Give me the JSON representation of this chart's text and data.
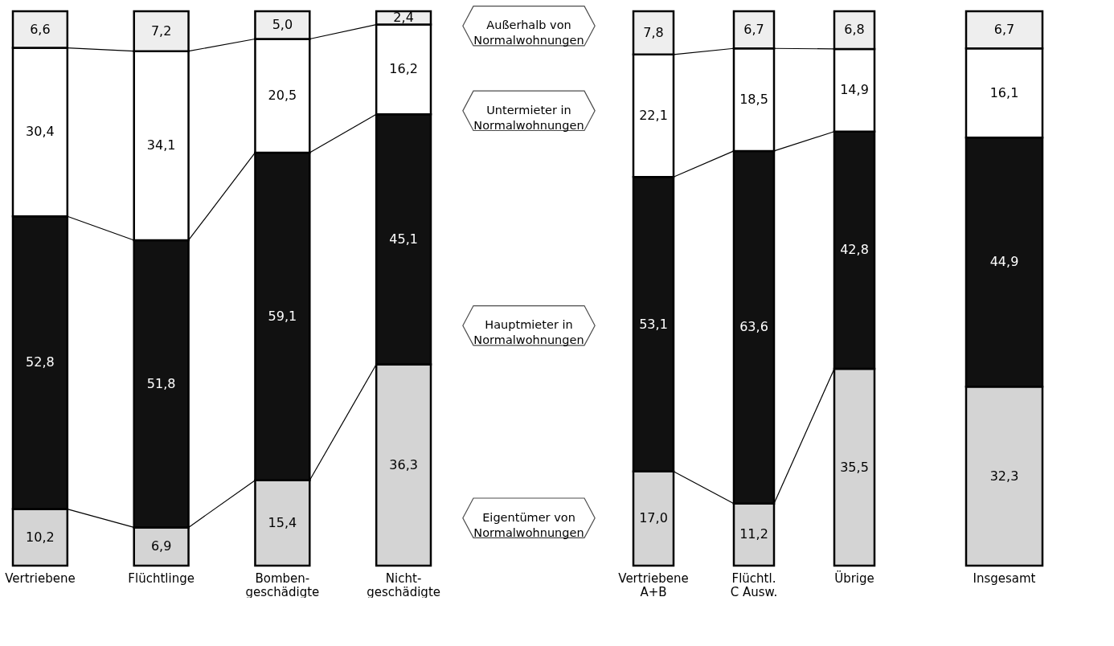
{
  "chart_data": [
    {
      "type": "bar",
      "stacked": true,
      "legend": "right",
      "categories": [
        "Vertriebene",
        "Flüchtlinge",
        "Bomben-\ngeschädigte",
        "Nicht-\ngeschädigte"
      ],
      "series": [
        {
          "name": "Eigentümer von\nNormalwohnungen",
          "color": "#d4d4d4",
          "values": [
            10.2,
            6.9,
            15.4,
            36.3
          ],
          "value_labels": [
            "10,2",
            "6,9",
            "15,4",
            "36,3"
          ]
        },
        {
          "name": "Hauptmieter in\nNormalwohnungen",
          "color": "#111111",
          "values": [
            52.8,
            51.8,
            59.1,
            45.1
          ],
          "value_labels": [
            "52,8",
            "51,8",
            "59,1",
            "45,1"
          ]
        },
        {
          "name": "Untermieter in\nNormalwohnungen",
          "color": "#ffffff",
          "values": [
            30.4,
            34.1,
            20.5,
            16.2
          ],
          "value_labels": [
            "30,4",
            "34,1",
            "20,5",
            "16,2"
          ]
        },
        {
          "name": "Außerhalb von\nNormalwohnungen",
          "color": "#eeeeee",
          "values": [
            6.6,
            7.2,
            5.0,
            2.4
          ],
          "value_labels": [
            "6,6",
            "7,2",
            "5,0",
            "2,4"
          ]
        }
      ]
    },
    {
      "type": "bar",
      "stacked": true,
      "categories": [
        "Vertriebene\nA+B",
        "Flüchtl.\nC Ausw.",
        "Übrige"
      ],
      "series": [
        {
          "color": "#d4d4d4",
          "values": [
            17.0,
            11.2,
            35.5
          ],
          "value_labels": [
            "17,0",
            "11,2",
            "35,5"
          ]
        },
        {
          "color": "#111111",
          "values": [
            53.1,
            63.6,
            42.8
          ],
          "value_labels": [
            "53,1",
            "63,6",
            "42,8"
          ]
        },
        {
          "color": "#ffffff",
          "values": [
            22.1,
            18.5,
            14.9
          ],
          "value_labels": [
            "22,1",
            "18,5",
            "14,9"
          ]
        },
        {
          "color": "#eeeeee",
          "values": [
            7.8,
            6.7,
            6.8
          ],
          "value_labels": [
            "7,8",
            "6,7",
            "6,8"
          ]
        }
      ]
    },
    {
      "type": "bar",
      "stacked": true,
      "categories": [
        "Insgesamt"
      ],
      "series": [
        {
          "color": "#d4d4d4",
          "values": [
            32.3
          ],
          "value_labels": [
            "32,3"
          ]
        },
        {
          "color": "#111111",
          "values": [
            44.9
          ],
          "value_labels": [
            "44,9"
          ]
        },
        {
          "color": "#ffffff",
          "values": [
            16.1
          ],
          "value_labels": [
            "16,1"
          ]
        },
        {
          "color": "#eeeeee",
          "values": [
            6.7
          ],
          "value_labels": [
            "6,7"
          ]
        }
      ]
    }
  ]
}
